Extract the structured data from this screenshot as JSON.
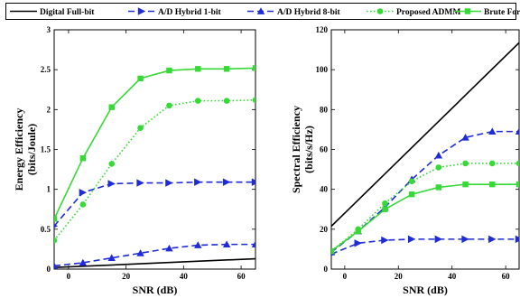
{
  "legend": {
    "entries": [
      {
        "name": "Digital Full-bit",
        "color": "#000000",
        "dash": "solid",
        "marker": "none"
      },
      {
        "name": "A/D Hybrid 1-bit",
        "color": "#1f2bd6",
        "dash": "dashed",
        "marker": "triangle-right"
      },
      {
        "name": "A/D Hybrid 8-bit",
        "color": "#1f2bd6",
        "dash": "dashed",
        "marker": "triangle-up"
      },
      {
        "name": "Proposed ADMM",
        "color": "#36d936",
        "dash": "dotted",
        "marker": "circle"
      },
      {
        "name": "Brute Force",
        "color": "#36d936",
        "dash": "solid",
        "marker": "square"
      }
    ]
  },
  "chart_data": [
    {
      "type": "line",
      "xlabel": "SNR (dB)",
      "ylabel": [
        "Energy Efficiency",
        "(bits/Joule)"
      ],
      "xlim": [
        -5,
        65
      ],
      "ylim": [
        0,
        3
      ],
      "xticks": [
        0,
        20,
        40,
        60
      ],
      "yticks": [
        0,
        0.5,
        1,
        1.5,
        2,
        2.5,
        3
      ],
      "ytick_labels": [
        "0",
        "0.5",
        "1",
        "1.5",
        "2",
        "2.5",
        "3"
      ],
      "series": [
        {
          "name": "Digital Full-bit",
          "x": [
            -5,
            65
          ],
          "y": [
            0.02,
            0.13
          ]
        },
        {
          "name": "A/D Hybrid 1-bit",
          "x": [
            -5,
            5,
            15,
            25,
            35,
            45,
            55,
            65
          ],
          "y": [
            0.54,
            0.96,
            1.07,
            1.08,
            1.08,
            1.09,
            1.09,
            1.09
          ]
        },
        {
          "name": "A/D Hybrid 8-bit",
          "x": [
            -5,
            5,
            15,
            25,
            35,
            45,
            55,
            65
          ],
          "y": [
            0.04,
            0.08,
            0.14,
            0.2,
            0.26,
            0.3,
            0.31,
            0.31
          ]
        },
        {
          "name": "Proposed ADMM",
          "x": [
            -5,
            5,
            15,
            25,
            35,
            45,
            55,
            65
          ],
          "y": [
            0.36,
            0.81,
            1.32,
            1.77,
            2.05,
            2.11,
            2.11,
            2.12
          ]
        },
        {
          "name": "Brute Force",
          "x": [
            -5,
            5,
            15,
            25,
            35,
            45,
            55,
            65
          ],
          "y": [
            0.63,
            1.39,
            2.03,
            2.39,
            2.49,
            2.51,
            2.51,
            2.52
          ]
        }
      ]
    },
    {
      "type": "line",
      "xlabel": "SNR (dB)",
      "ylabel": [
        "Spectral Efficiency",
        "(bits/s/Hz)"
      ],
      "xlim": [
        -5,
        65
      ],
      "ylim": [
        0,
        120
      ],
      "xticks": [
        0,
        20,
        40,
        60
      ],
      "yticks": [
        0,
        20,
        40,
        60,
        80,
        100,
        120
      ],
      "ytick_labels": [
        "0",
        "20",
        "40",
        "60",
        "80",
        "100",
        "120"
      ],
      "series": [
        {
          "name": "Digital Full-bit",
          "x": [
            -5,
            65
          ],
          "y": [
            21.5,
            113.5
          ]
        },
        {
          "name": "A/D Hybrid 1-bit",
          "x": [
            -5,
            5,
            15,
            25,
            35,
            45,
            55,
            65
          ],
          "y": [
            7.5,
            13,
            14.5,
            15,
            15,
            15,
            15,
            15
          ]
        },
        {
          "name": "A/D Hybrid 8-bit",
          "x": [
            -5,
            5,
            15,
            25,
            35,
            45,
            55,
            65
          ],
          "y": [
            8.5,
            19,
            31,
            45,
            57,
            66,
            69,
            69
          ]
        },
        {
          "name": "Proposed ADMM",
          "x": [
            -5,
            5,
            15,
            25,
            35,
            45,
            55,
            65
          ],
          "y": [
            9,
            20,
            33,
            44,
            51,
            53,
            53,
            53
          ]
        },
        {
          "name": "Brute Force",
          "x": [
            -5,
            5,
            15,
            25,
            35,
            45,
            55,
            65
          ],
          "y": [
            9,
            19,
            30,
            37.5,
            41,
            42.5,
            42.5,
            42.5
          ]
        }
      ]
    }
  ]
}
